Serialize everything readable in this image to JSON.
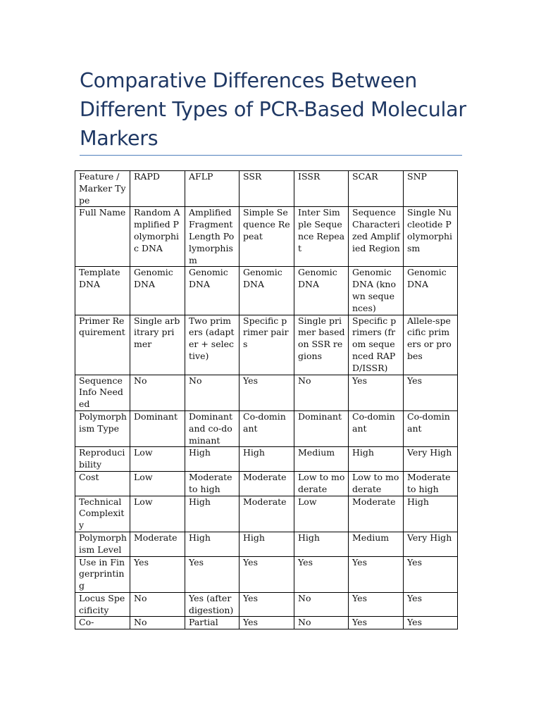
{
  "document": {
    "title": "Comparative Differences Between Different Types of PCR-Based Molecular Markers"
  },
  "table": {
    "headers": [
      "Feature / Marker Type",
      "RAPD",
      "AFLP",
      "SSR",
      "ISSR",
      "SCAR",
      "SNP"
    ],
    "rows": [
      [
        "Full Name",
        "Random Amplified Polymorphic DNA",
        "Amplified Fragment Length Polymorphism",
        "Simple Sequence Repeat",
        "Inter Simple Sequence Repeat",
        "Sequence Characterized Amplified Region",
        "Single Nucleotide Polymorphism"
      ],
      [
        "Template DNA",
        "Genomic DNA",
        "Genomic DNA",
        "Genomic DNA",
        "Genomic DNA",
        "Genomic DNA (known sequences)",
        "Genomic DNA"
      ],
      [
        "Primer Requirement",
        "Single arbitrary primer",
        "Two primers (adapter + selective)",
        "Specific primer pairs",
        "Single primer based on SSR regions",
        "Specific primers (from sequenced RAPD/ISSR)",
        "Allele-specific primers or probes"
      ],
      [
        "Sequence Info Needed",
        "No",
        "No",
        "Yes",
        "No",
        "Yes",
        "Yes"
      ],
      [
        "Polymorphism Type",
        "Dominant",
        "Dominant and co-dominant",
        "Co-dominant",
        "Dominant",
        "Co-dominant",
        "Co-dominant"
      ],
      [
        "Reproducibility",
        "Low",
        "High",
        "High",
        "Medium",
        "High",
        "Very High"
      ],
      [
        "Cost",
        "Low",
        "Moderate to high",
        "Moderate",
        "Low to moderate",
        "Low to moderate",
        "Moderate to high"
      ],
      [
        "Technical Complexity",
        "Low",
        "High",
        "Moderate",
        "Low",
        "Moderate",
        "High"
      ],
      [
        "Polymorphism Level",
        "Moderate",
        "High",
        "High",
        "High",
        "Medium",
        "Very High"
      ],
      [
        "Use in Fingerprinting",
        "Yes",
        "Yes",
        "Yes",
        "Yes",
        "Yes",
        "Yes"
      ],
      [
        "Locus Specificity",
        "No",
        "Yes (after digestion)",
        "Yes",
        "No",
        "Yes",
        "Yes"
      ],
      [
        "Co-",
        "No",
        "Partial",
        "Yes",
        "No",
        "Yes",
        "Yes"
      ]
    ]
  }
}
